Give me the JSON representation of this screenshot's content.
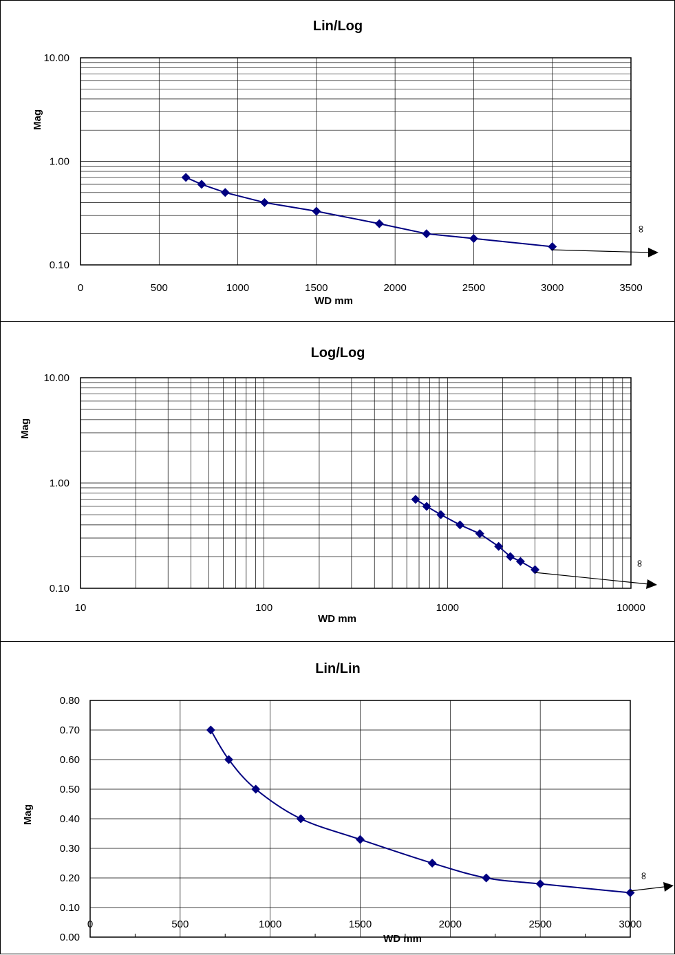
{
  "colors": {
    "series": "#000080",
    "grid": "#000000",
    "frame": "#000000"
  },
  "chart_data": [
    {
      "type": "line",
      "title": "Lin/Log",
      "xlabel": "WD mm",
      "ylabel": "Mag",
      "x_scale": "linear",
      "y_scale": "log",
      "xlim": [
        0,
        3500
      ],
      "ylim": [
        0.1,
        10
      ],
      "grid": true,
      "x_ticks": [
        "0",
        "500",
        "1000",
        "1500",
        "2000",
        "2500",
        "3000",
        "3500"
      ],
      "y_ticks": [
        "10.00",
        "1.00",
        "0.10"
      ],
      "annotation": "∞",
      "series": [
        {
          "x": [
            670,
            770,
            920,
            1170,
            1500,
            1900,
            2200,
            2500,
            3000
          ],
          "y": [
            0.7,
            0.6,
            0.5,
            0.4,
            0.33,
            0.25,
            0.2,
            0.18,
            0.15
          ]
        }
      ]
    },
    {
      "type": "line",
      "title": "Log/Log",
      "xlabel": "WD mm",
      "ylabel": "Mag",
      "x_scale": "log",
      "y_scale": "log",
      "xlim": [
        10,
        10000
      ],
      "ylim": [
        0.1,
        10
      ],
      "grid": true,
      "x_ticks": [
        "10",
        "100",
        "1000",
        "10000"
      ],
      "y_ticks": [
        "10.00",
        "1.00",
        "0.10"
      ],
      "annotation": "∞",
      "series": [
        {
          "x": [
            670,
            770,
            920,
            1170,
            1500,
            1900,
            2200,
            2500,
            3000
          ],
          "y": [
            0.7,
            0.6,
            0.5,
            0.4,
            0.33,
            0.25,
            0.2,
            0.18,
            0.15
          ]
        }
      ]
    },
    {
      "type": "line",
      "title": "Lin/Lin",
      "xlabel": "WD mm",
      "ylabel": "Mag",
      "x_scale": "linear",
      "y_scale": "linear",
      "xlim": [
        0,
        3000
      ],
      "ylim": [
        0,
        0.8
      ],
      "grid": true,
      "x_ticks": [
        "0",
        "500",
        "1000",
        "1500",
        "2000",
        "2500",
        "3000"
      ],
      "y_ticks": [
        "0.80",
        "0.70",
        "0.60",
        "0.50",
        "0.40",
        "0.30",
        "0.20",
        "0.10",
        "0.00"
      ],
      "annotation": "∞",
      "series": [
        {
          "x": [
            670,
            770,
            920,
            1170,
            1500,
            1900,
            2200,
            2500,
            3000
          ],
          "y": [
            0.7,
            0.6,
            0.5,
            0.4,
            0.33,
            0.25,
            0.2,
            0.18,
            0.15
          ]
        }
      ]
    }
  ]
}
